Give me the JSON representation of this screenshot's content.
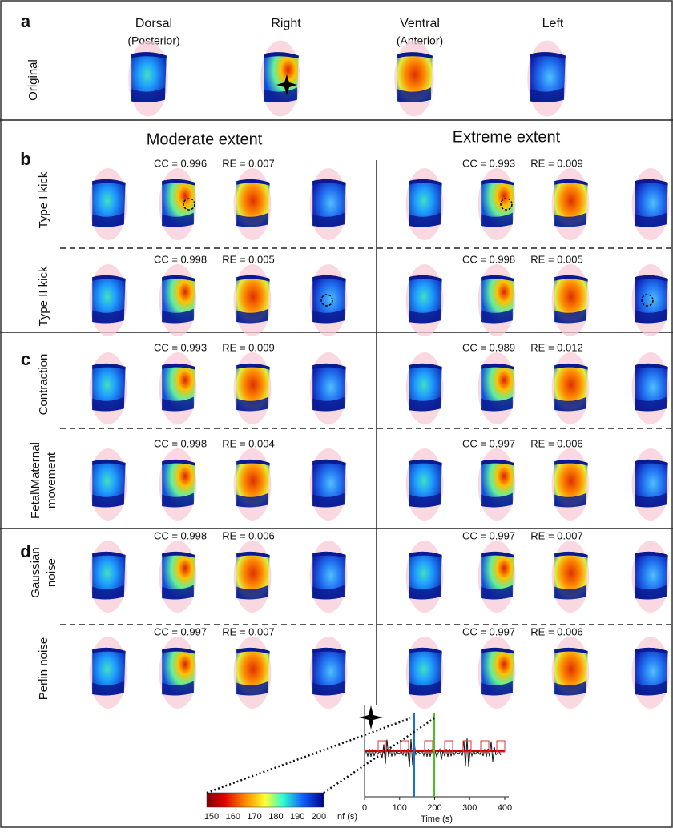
{
  "panel_a": {
    "label": "a",
    "row_label": [
      "Original"
    ],
    "views": [
      {
        "title": "Dorsal",
        "subtitle": "(Posterior)"
      },
      {
        "title": "Right"
      },
      {
        "title": "Ventral",
        "subtitle": "(Anterior)"
      },
      {
        "title": "Left"
      }
    ]
  },
  "columns": [
    "Moderate extent",
    "Extreme extent"
  ],
  "panels": [
    {
      "label": "b",
      "rows": [
        {
          "label": [
            "Type I kick"
          ],
          "moderate": [
            "CC = 0.996",
            "RE = 0.007"
          ],
          "extreme": [
            "CC = 0.993",
            "RE = 0.009"
          ]
        },
        {
          "label": [
            "Type II kick"
          ],
          "moderate": [
            "CC = 0.998",
            "RE = 0.005"
          ],
          "extreme": [
            "CC = 0.998",
            "RE = 0.005"
          ]
        }
      ]
    },
    {
      "label": "c",
      "rows": [
        {
          "label": [
            "Contraction"
          ],
          "moderate": [
            "CC = 0.993",
            "RE = 0.009"
          ],
          "extreme": [
            "CC = 0.989",
            "RE = 0.012"
          ]
        },
        {
          "label": [
            "Fetal\\Maternal",
            "movement"
          ],
          "moderate": [
            "CC = 0.998",
            "RE = 0.004"
          ],
          "extreme": [
            "CC = 0.997",
            "RE = 0.006"
          ]
        }
      ]
    },
    {
      "label": "d",
      "rows": [
        {
          "label": [
            "Gaussian",
            "noise"
          ],
          "moderate": [
            "CC = 0.998",
            "RE = 0.006"
          ],
          "extreme": [
            "CC = 0.997",
            "RE = 0.007"
          ]
        },
        {
          "label": [
            "Perlin noise"
          ],
          "moderate": [
            "CC = 0.997",
            "RE = 0.007"
          ],
          "extreme": [
            "CC = 0.997",
            "RE = 0.006"
          ]
        }
      ]
    }
  ],
  "colorbar": {
    "ticks": [
      "150",
      "160",
      "170",
      "180",
      "190",
      "200"
    ],
    "unit": "Inf  (s)"
  },
  "inset": {
    "xticks": [
      "0",
      "100",
      "200",
      "300",
      "400"
    ],
    "xlabel": "Time (s)"
  }
}
